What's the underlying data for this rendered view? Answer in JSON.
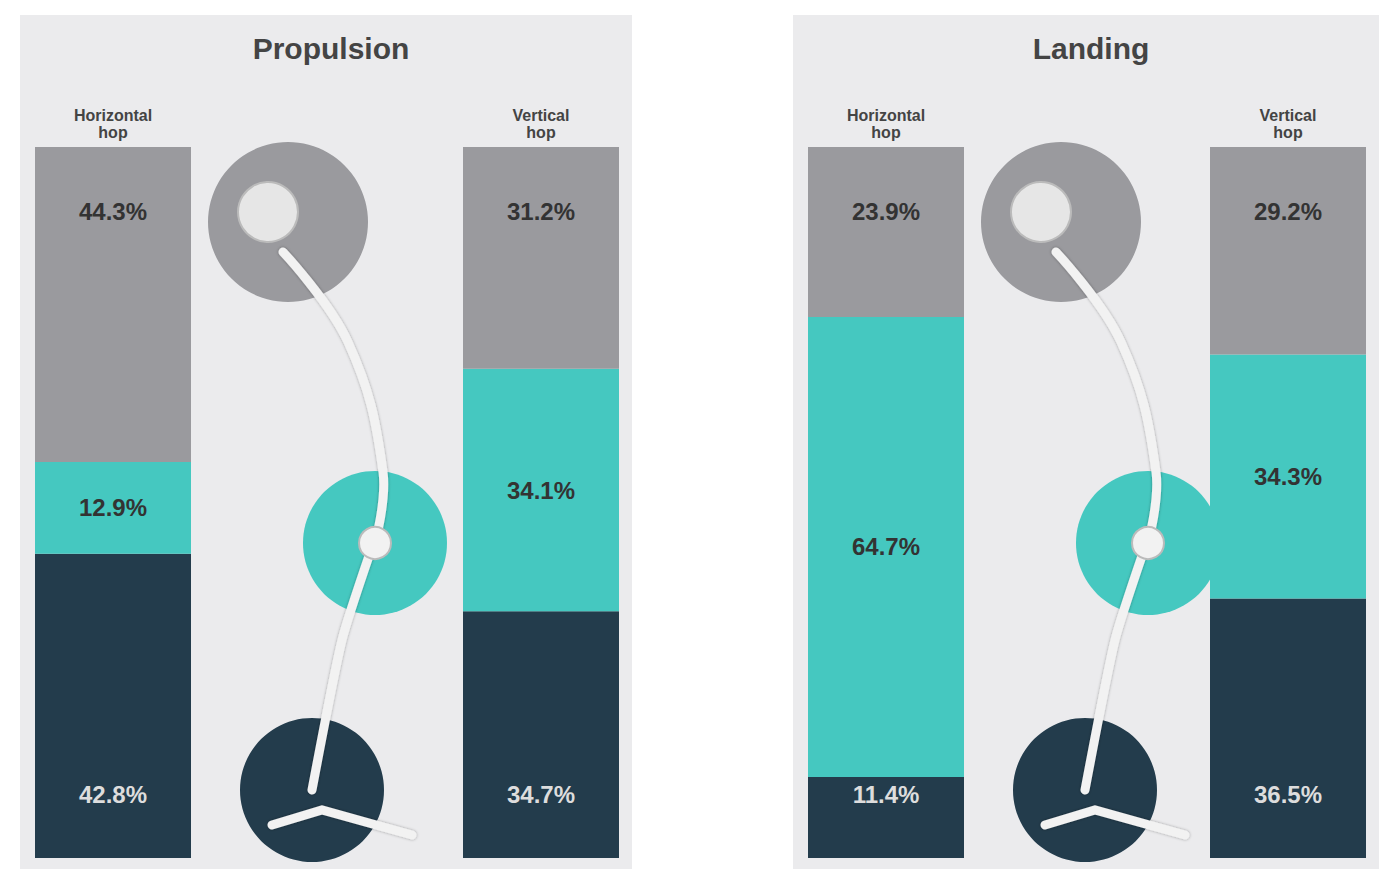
{
  "chart_data": [
    {
      "type": "bar",
      "title": "Propulsion",
      "categories": [
        "Horizontal hop",
        "Vertical hop"
      ],
      "series": [
        {
          "color": "#233c4c",
          "values": [
            42.8,
            34.7
          ],
          "value_labels": [
            "42.8%",
            "34.7%"
          ]
        },
        {
          "color": "#45c8c0",
          "values": [
            12.9,
            34.1
          ],
          "value_labels": [
            "12.9%",
            "34.1%"
          ]
        },
        {
          "color": "#9a9a9e",
          "values": [
            44.3,
            31.2
          ],
          "value_labels": [
            "44.3%",
            "31.2%"
          ]
        }
      ],
      "ylim": [
        0,
        100
      ],
      "stacked": true,
      "data_labels": true,
      "tick_labels": "x"
    },
    {
      "type": "bar",
      "title": "Landing",
      "categories": [
        "Horizontal hop",
        "Vertical hop"
      ],
      "series": [
        {
          "color": "#233c4c",
          "values": [
            11.4,
            36.5
          ],
          "value_labels": [
            "11.4%",
            "36.5%"
          ]
        },
        {
          "color": "#45c8c0",
          "values": [
            64.7,
            34.3
          ],
          "value_labels": [
            "64.7%",
            "34.3%"
          ]
        },
        {
          "color": "#9a9a9e",
          "values": [
            23.9,
            29.2
          ],
          "value_labels": [
            "23.9%",
            "29.2%"
          ]
        }
      ],
      "ylim": [
        0,
        100
      ],
      "stacked": true,
      "data_labels": true,
      "tick_labels": "x"
    }
  ]
}
